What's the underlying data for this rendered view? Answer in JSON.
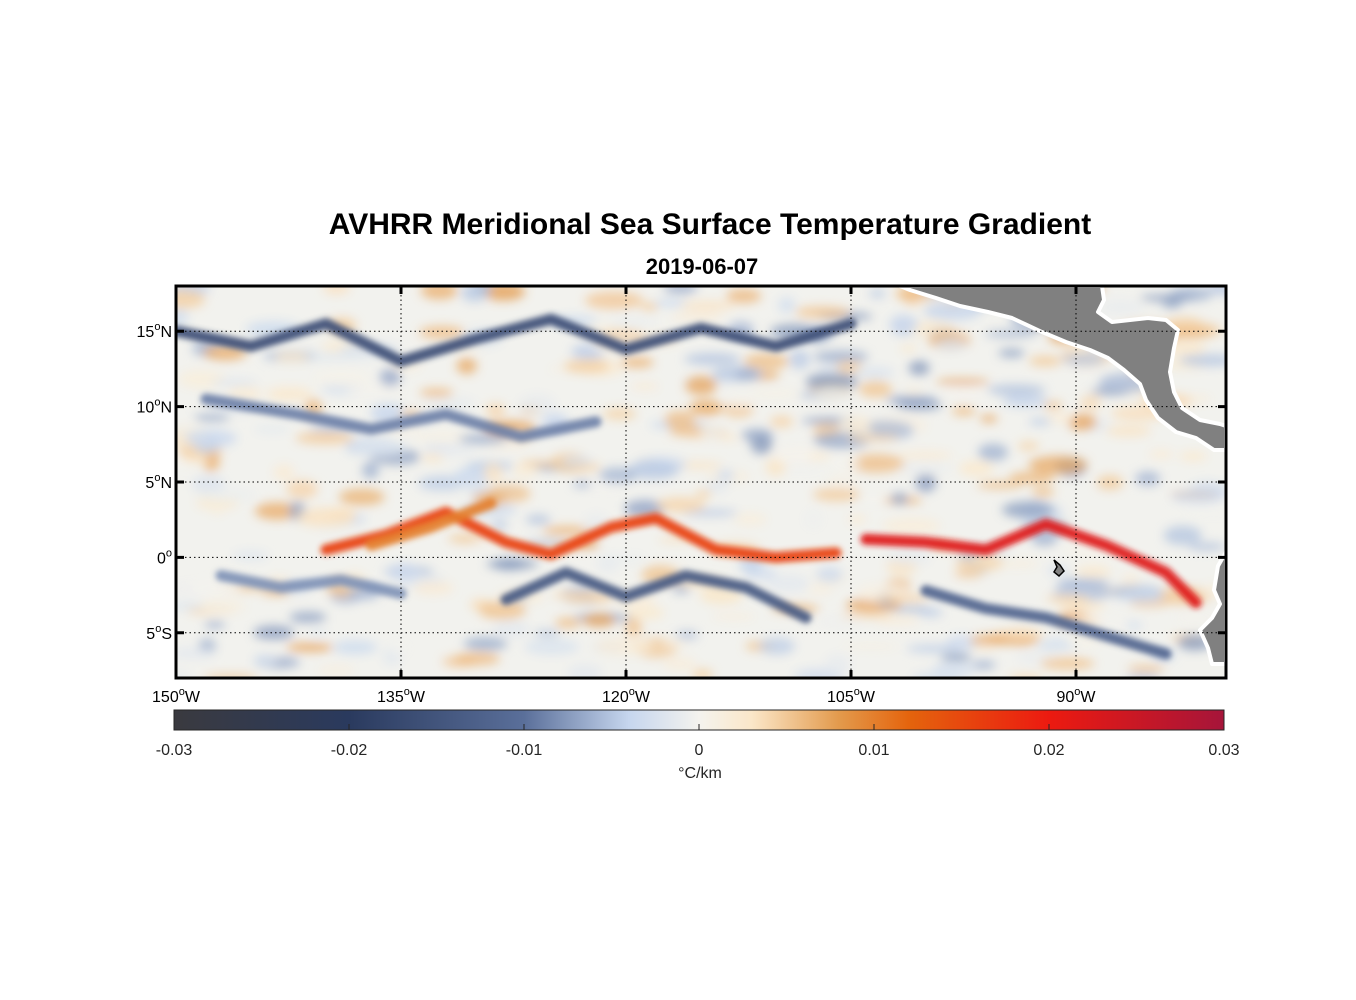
{
  "figure": {
    "title": "AVHRR Meridional Sea Surface Temperature Gradient",
    "subtitle": "2019-06-07"
  },
  "map": {
    "lon_range": [
      -150,
      -80
    ],
    "lat_range": [
      -8,
      18
    ],
    "graticule": "dotted",
    "land_color": "#808080",
    "lon_ticks": [
      {
        "value": -150,
        "num": "150",
        "sup": "o",
        "hem": "W"
      },
      {
        "value": -135,
        "num": "135",
        "sup": "o",
        "hem": "W"
      },
      {
        "value": -120,
        "num": "120",
        "sup": "o",
        "hem": "W"
      },
      {
        "value": -105,
        "num": "105",
        "sup": "o",
        "hem": "W"
      },
      {
        "value": -90,
        "num": "90",
        "sup": "o",
        "hem": "W"
      }
    ],
    "lat_ticks": [
      {
        "value": 15,
        "num": "15",
        "sup": "o",
        "hem": "N"
      },
      {
        "value": 10,
        "num": "10",
        "sup": "o",
        "hem": "N"
      },
      {
        "value": 5,
        "num": "5",
        "sup": "o",
        "hem": "N"
      },
      {
        "value": 0,
        "num": "0",
        "sup": "o",
        "hem": ""
      },
      {
        "value": -5,
        "num": "5",
        "sup": "o",
        "hem": "S"
      }
    ]
  },
  "colorbar": {
    "range": [
      -0.03,
      0.03
    ],
    "ticks": [
      {
        "value": -0.03,
        "label": "-0.03"
      },
      {
        "value": -0.02,
        "label": "-0.02"
      },
      {
        "value": -0.01,
        "label": "-0.01"
      },
      {
        "value": 0,
        "label": "0"
      },
      {
        "value": 0.01,
        "label": "0.01"
      },
      {
        "value": 0.02,
        "label": "0.02"
      },
      {
        "value": 0.03,
        "label": "0.03"
      }
    ],
    "unit_label": "°C/km",
    "stops": [
      {
        "value": -0.03,
        "color": "#3a3a3f"
      },
      {
        "value": -0.02,
        "color": "#2a3a5e"
      },
      {
        "value": -0.01,
        "color": "#5a6f9a"
      },
      {
        "value": -0.004,
        "color": "#c6d6ee"
      },
      {
        "value": 0,
        "color": "#f4f3ee"
      },
      {
        "value": 0.003,
        "color": "#fbe7c9"
      },
      {
        "value": 0.008,
        "color": "#e39a4c"
      },
      {
        "value": 0.012,
        "color": "#e4640d"
      },
      {
        "value": 0.02,
        "color": "#ec1a10"
      },
      {
        "value": 0.03,
        "color": "#a6153a"
      }
    ]
  },
  "features": {
    "positive_fronts": [
      {
        "lons": [
          -140,
          -136,
          -132,
          -128,
          -125,
          -121,
          -118,
          -114,
          -110,
          -106
        ],
        "lats": [
          0.5,
          1.5,
          3.0,
          1.0,
          0.2,
          2.0,
          2.6,
          0.5,
          0.0,
          0.3
        ],
        "strength": 0.016
      },
      {
        "lons": [
          -104,
          -100,
          -96,
          -92,
          -88,
          -84,
          -82
        ],
        "lats": [
          1.2,
          1.0,
          0.5,
          2.2,
          0.8,
          -1.0,
          -3.0
        ],
        "strength": 0.022
      },
      {
        "lons": [
          -137,
          -133,
          -129
        ],
        "lats": [
          0.8,
          2.0,
          3.6
        ],
        "strength": 0.01
      }
    ],
    "negative_fronts": [
      {
        "lons": [
          -128,
          -124,
          -120,
          -116,
          -112,
          -108
        ],
        "lats": [
          -2.8,
          -1.0,
          -2.6,
          -1.2,
          -2.0,
          -4.0
        ],
        "strength": -0.014
      },
      {
        "lons": [
          -147,
          -143,
          -139,
          -135
        ],
        "lats": [
          -1.2,
          -2.0,
          -1.5,
          -2.4
        ],
        "strength": -0.008
      },
      {
        "lons": [
          -150,
          -145,
          -140,
          -135,
          -130,
          -125,
          -120,
          -115,
          -110,
          -105
        ],
        "lats": [
          15.0,
          14.0,
          15.5,
          13.0,
          14.5,
          15.8,
          13.8,
          15.2,
          14.0,
          15.5
        ],
        "strength": -0.016
      },
      {
        "lons": [
          -148,
          -142,
          -137,
          -132,
          -127,
          -122
        ],
        "lats": [
          10.5,
          9.5,
          8.5,
          9.5,
          8.0,
          9.0
        ],
        "strength": -0.009
      },
      {
        "lons": [
          -100,
          -96,
          -92,
          -88,
          -84
        ],
        "lats": [
          -2.2,
          -3.4,
          -4.0,
          -5.2,
          -6.4
        ],
        "strength": -0.012
      }
    ]
  }
}
